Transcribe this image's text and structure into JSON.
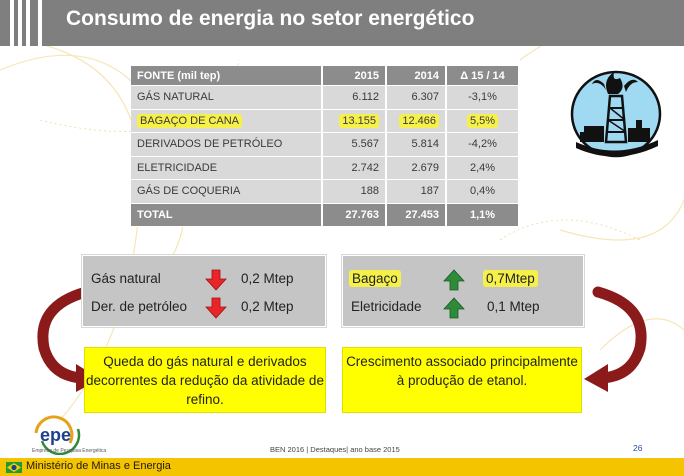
{
  "title": "Consumo de energia no setor energético",
  "table": {
    "headers": [
      "FONTE (mil tep)",
      "2015",
      "2014",
      "Δ 15 / 14"
    ],
    "rows": [
      {
        "source": "GÁS NATURAL",
        "y2015": "6.112",
        "y2014": "6.307",
        "delta": "-3,1%",
        "highlight": false
      },
      {
        "source": "BAGAÇO DE CANA",
        "y2015": "13.155",
        "y2014": "12.466",
        "delta": "5,5%",
        "highlight": true
      },
      {
        "source": "DERIVADOS DE PETRÓLEO",
        "y2015": "5.567",
        "y2014": "5.814",
        "delta": "-4,2%",
        "highlight": false
      },
      {
        "source": "ELETRICIDADE",
        "y2015": "2.742",
        "y2014": "2.679",
        "delta": "2,4%",
        "highlight": false
      },
      {
        "source": "GÁS DE COQUERIA",
        "y2015": "188",
        "y2014": "187",
        "delta": "0,4%",
        "highlight": false
      }
    ],
    "total": {
      "source": "TOTAL",
      "y2015": "27.763",
      "y2014": "27.453",
      "delta": "1,1%"
    }
  },
  "decreases": [
    {
      "label": "Gás natural",
      "value": "0,2 Mtep",
      "icon": "arrow-down-icon"
    },
    {
      "label": "Der. de petróleo",
      "value": "0,2 Mtep",
      "icon": "arrow-down-icon"
    }
  ],
  "increases": [
    {
      "label": "Bagaço",
      "value": "0,7Mtep",
      "icon": "arrow-up-icon"
    },
    {
      "label": "Eletricidade",
      "value": "0,1 Mtep",
      "icon": "arrow-up-icon"
    }
  ],
  "notes": {
    "left": "Queda do gás natural e derivados decorrentes da redução da atividade de refino.",
    "right": "Crescimento associado principalmente à produção de etanol."
  },
  "footer": {
    "logo_text": "epe",
    "logo_caption": "Empresa de Pesquisa Energética",
    "center_text": "BEN 2016 | Destaques| ano base 2015",
    "page_number": "26",
    "ministry": "Ministério de Minas e Energia"
  },
  "colors": {
    "header": "#7f7f7f",
    "table_header": "#8c8c8c",
    "table_cell": "#d9d9d9",
    "highlight": "#f6f04a",
    "decrease_arrow": "#e8262a",
    "increase_arrow": "#2e8b3a",
    "note_box": "#ffff00",
    "curve_arrow": "#8b1a1a",
    "footer_bar": "#f5c400"
  }
}
